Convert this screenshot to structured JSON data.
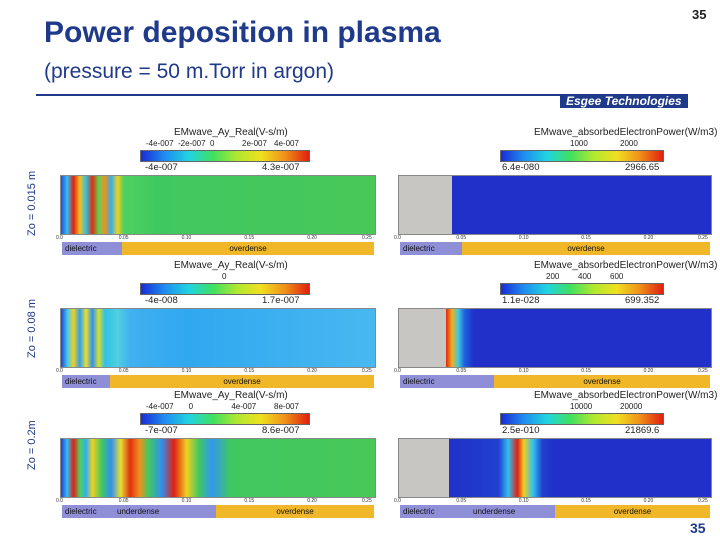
{
  "header": {
    "title": "Power deposition in plasma",
    "subtitle": "(pressure = 50 m.Torr in argon)",
    "page_number_top": "35",
    "page_number_bottom": "35",
    "logo": "Esgee Technologies"
  },
  "rows": [
    {
      "label": "Zo = 0.015 m",
      "left": {
        "title": "EMwave_Ay_Real(V-s/m)",
        "ticks": [
          "-4e-007",
          "-2e-007",
          "0",
          "2e-007",
          "4e-007"
        ],
        "min": "-4e-007",
        "max": "4.3e-007",
        "axis": [
          "0.0",
          "0.05",
          "0.10",
          "0.15",
          "0.20",
          "0.25"
        ],
        "regions": [
          {
            "label": "dielectric",
            "kind": "di"
          },
          {
            "label": "overdense",
            "kind": "ov"
          }
        ]
      },
      "right": {
        "title": "EMwave_absorbedElectronPower(W/m3)",
        "ticks": [
          "1000",
          "2000"
        ],
        "min": "6.4e-080",
        "max": "2966.65",
        "axis": [
          "0.0",
          "0.05",
          "0.10",
          "0.15",
          "0.20",
          "0.25"
        ],
        "regions": [
          {
            "label": "dielectric",
            "kind": "di"
          },
          {
            "label": "overdense",
            "kind": "ov"
          }
        ]
      }
    },
    {
      "label": "Zo = 0.08 m",
      "left": {
        "title": "EMwave_Ay_Real(V-s/m)",
        "ticks": [
          "0"
        ],
        "min": "-4e-008",
        "max": "1.7e-007",
        "axis": [
          "0.0",
          "0.05",
          "0.10",
          "0.15",
          "0.20",
          "0.25"
        ],
        "regions": [
          {
            "label": "dielectric",
            "kind": "di"
          },
          {
            "label": "overdense",
            "kind": "ov"
          }
        ]
      },
      "right": {
        "title": "EMwave_absorbedElectronPower(W/m3)",
        "ticks": [
          "200",
          "400",
          "600"
        ],
        "min": "1.1e-028",
        "max": "699.352",
        "axis": [
          "0.0",
          "0.05",
          "0.10",
          "0.15",
          "0.20",
          "0.25"
        ],
        "regions": [
          {
            "label": "dielectric",
            "kind": "di"
          },
          {
            "label": "overdense",
            "kind": "ov"
          }
        ]
      }
    },
    {
      "label": "Zo = 0.2m",
      "left": {
        "title": "EMwave_Ay_Real(V-s/m)",
        "ticks": [
          "-4e-007",
          "0",
          "4e-007",
          "8e-007"
        ],
        "min": "-7e-007",
        "max": "8.6e-007",
        "axis": [
          "0.0",
          "0.05",
          "0.10",
          "0.15",
          "0.20",
          "0.25"
        ],
        "regions": [
          {
            "label": "dielectric",
            "kind": "di"
          },
          {
            "label": "underdense",
            "kind": "un"
          },
          {
            "label": "overdense",
            "kind": "ov"
          }
        ]
      },
      "right": {
        "title": "EMwave_absorbedElectronPower(W/m3)",
        "ticks": [
          "10000",
          "20000"
        ],
        "min": "2.5e-010",
        "max": "21869.6",
        "axis": [
          "0.0",
          "0.05",
          "0.10",
          "0.15",
          "0.20",
          "0.25"
        ],
        "regions": [
          {
            "label": "dielectric",
            "kind": "di"
          },
          {
            "label": "underdense",
            "kind": "un"
          },
          {
            "label": "overdense",
            "kind": "ov"
          }
        ]
      }
    }
  ],
  "colors": {
    "title": "#1f3a8a",
    "dielectric": "#8f8fd8",
    "underdense": "#8f8fd8",
    "overdense": "#f0b828",
    "dielectric_block": "#c8c6c2"
  }
}
